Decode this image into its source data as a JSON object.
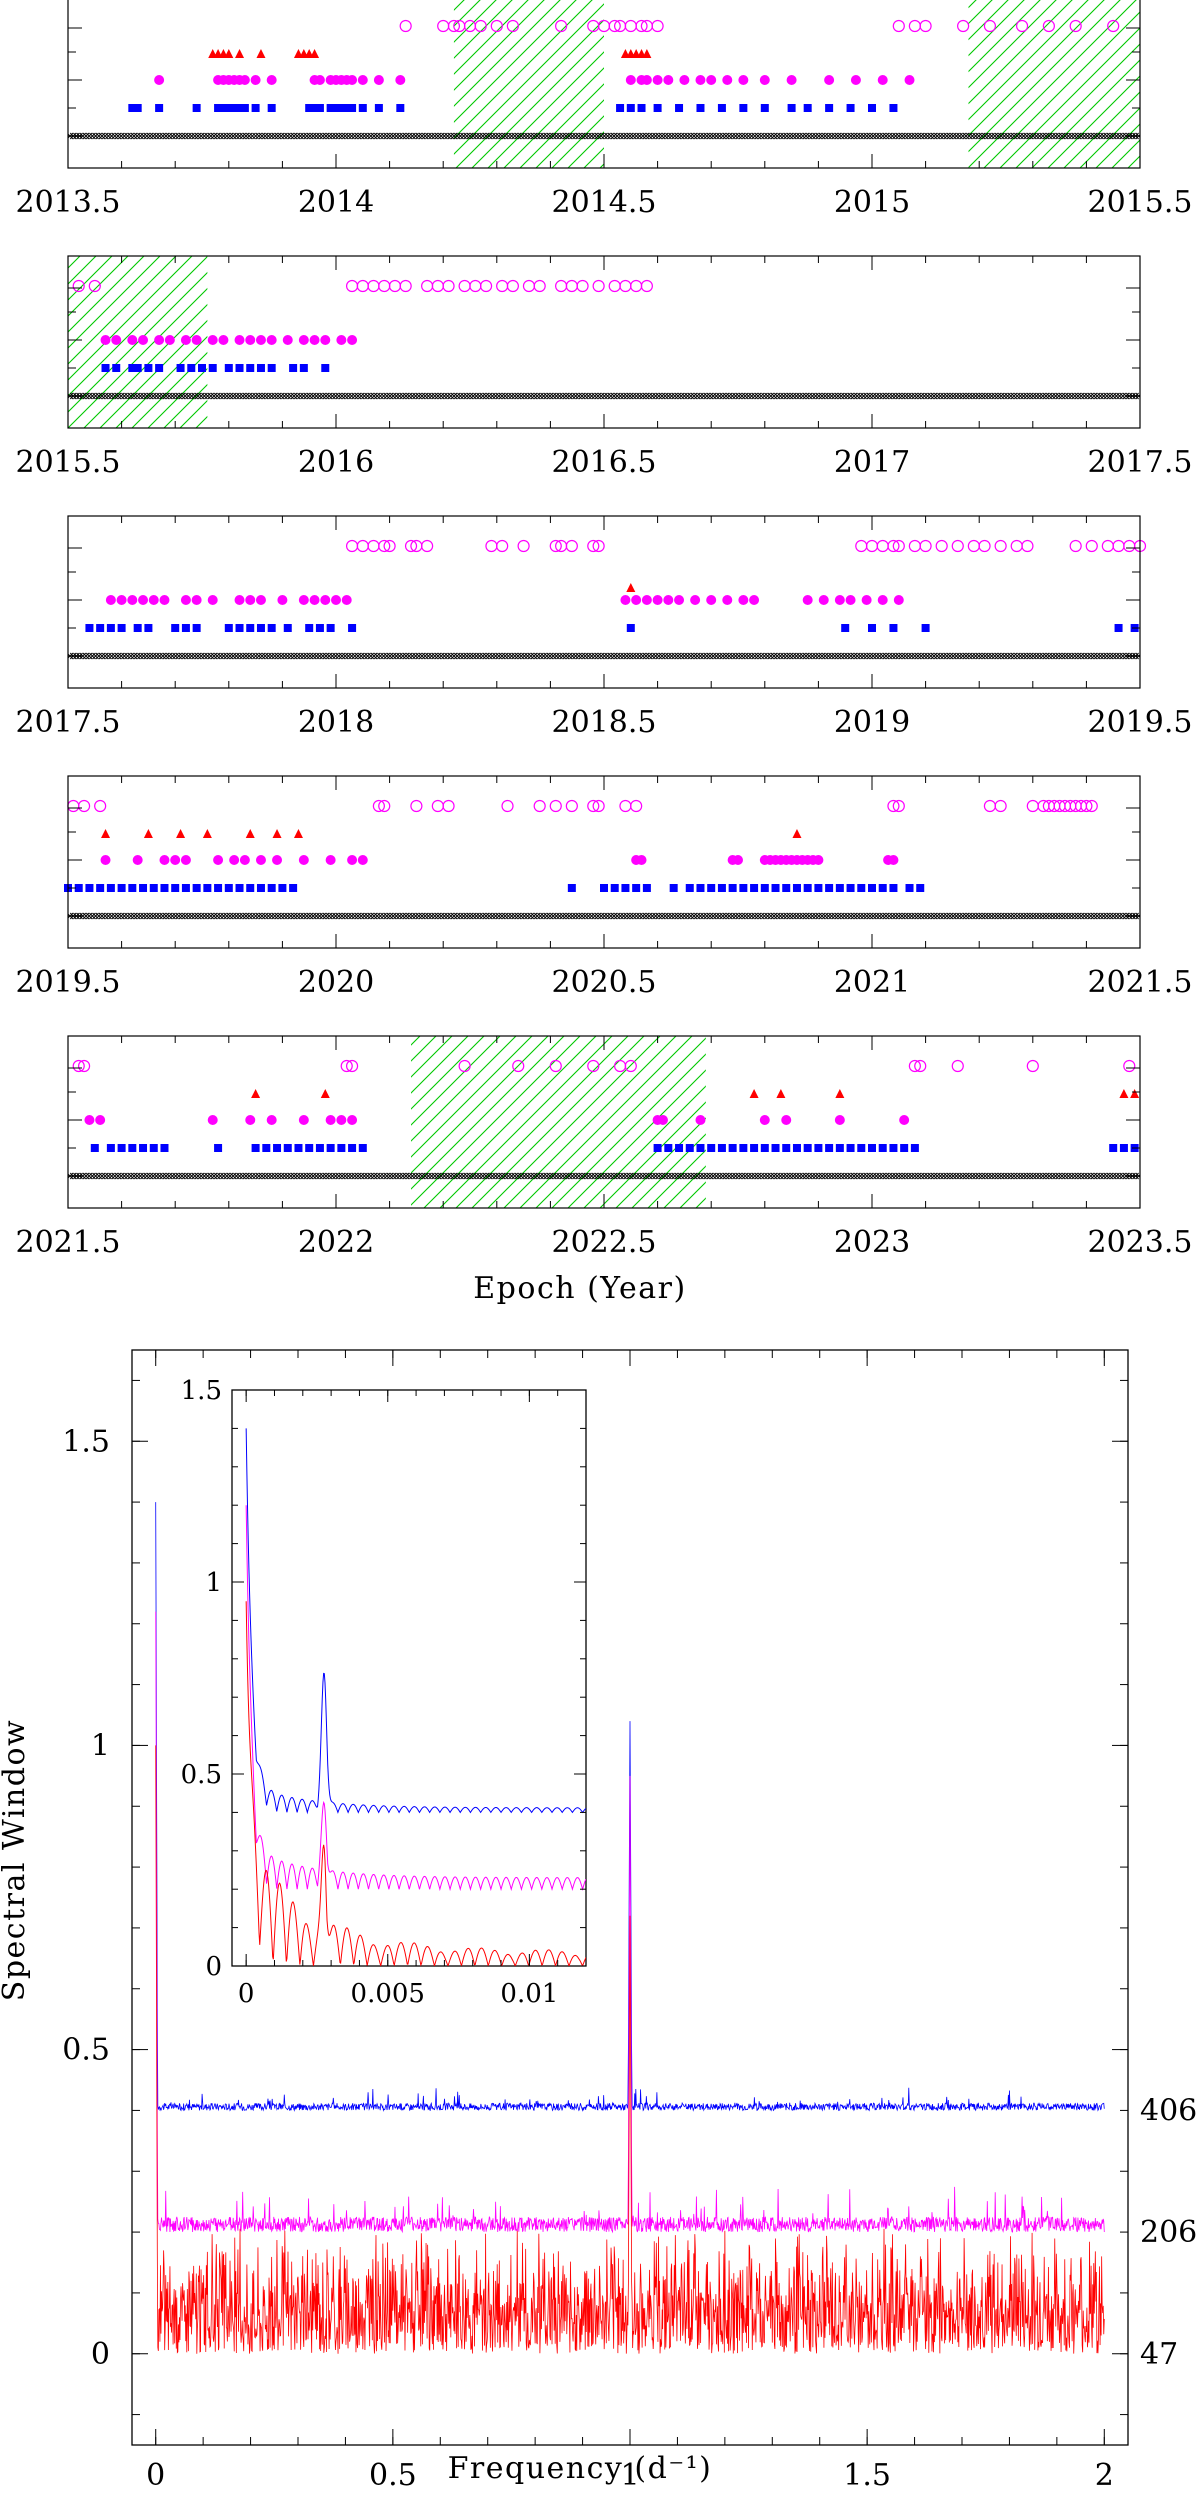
{
  "chart_data": [
    {
      "type": "scatter",
      "xlabel": "Epoch (Year)",
      "panels": [
        {
          "xlim": [
            2013.5,
            2015.5
          ],
          "tick_labels": [
            "2013.5",
            "2014",
            "2014.5",
            "2015",
            "2015.5"
          ],
          "gaps": [
            [
              2014.22,
              2014.5
            ],
            [
              2015.18,
              2015.5
            ]
          ],
          "series": {
            "open": [
              2014.13,
              2014.2,
              2014.22,
              2014.23,
              2014.25,
              2014.27,
              2014.3,
              2014.33,
              2014.42,
              2014.48,
              2014.5,
              2014.52,
              2014.53,
              2014.55,
              2014.57,
              2014.58,
              2014.6,
              2015.05,
              2015.08,
              2015.1,
              2015.17,
              2015.22,
              2015.28,
              2015.33,
              2015.38,
              2015.45
            ],
            "filled": [
              2013.67,
              2013.78,
              2013.79,
              2013.8,
              2013.81,
              2013.82,
              2013.83,
              2013.85,
              2013.88,
              2013.96,
              2013.97,
              2013.99,
              2014.0,
              2014.01,
              2014.02,
              2014.03,
              2014.05,
              2014.08,
              2014.12,
              2014.55,
              2014.57,
              2014.58,
              2014.6,
              2014.62,
              2014.65,
              2014.68,
              2014.7,
              2014.73,
              2014.76,
              2014.8,
              2014.85,
              2014.92,
              2014.97,
              2015.02,
              2015.07
            ],
            "square": [
              2013.62,
              2013.63,
              2013.67,
              2013.74,
              2013.78,
              2013.79,
              2013.8,
              2013.81,
              2013.82,
              2013.83,
              2013.85,
              2013.88,
              2013.95,
              2013.96,
              2013.97,
              2013.99,
              2014.0,
              2014.01,
              2014.02,
              2014.03,
              2014.05,
              2014.08,
              2014.12,
              2014.53,
              2014.55,
              2014.57,
              2014.6,
              2014.64,
              2014.68,
              2014.72,
              2014.76,
              2014.8,
              2014.85,
              2014.88,
              2014.92,
              2014.96,
              2015.0,
              2015.04
            ],
            "triangle": [
              2013.77,
              2013.78,
              2013.79,
              2013.8,
              2013.82,
              2013.86,
              2013.93,
              2013.94,
              2013.95,
              2013.96,
              2014.54,
              2014.55,
              2014.56,
              2014.57,
              2014.58
            ]
          }
        },
        {
          "xlim": [
            2015.5,
            2017.5
          ],
          "tick_labels": [
            "2015.5",
            "2016",
            "2016.5",
            "2017",
            "2017.5"
          ],
          "gaps": [
            [
              2015.5,
              2015.76
            ]
          ],
          "series": {
            "open": [
              2015.52,
              2015.55,
              2016.03,
              2016.05,
              2016.07,
              2016.09,
              2016.11,
              2016.13,
              2016.17,
              2016.19,
              2016.21,
              2016.24,
              2016.26,
              2016.28,
              2016.31,
              2016.33,
              2016.36,
              2016.38,
              2016.42,
              2016.44,
              2016.46,
              2016.49,
              2016.52,
              2016.54,
              2016.56,
              2016.58
            ],
            "filled": [
              2015.57,
              2015.59,
              2015.62,
              2015.64,
              2015.67,
              2015.69,
              2015.72,
              2015.74,
              2015.77,
              2015.79,
              2015.82,
              2015.84,
              2015.86,
              2015.88,
              2015.91,
              2015.94,
              2015.96,
              2015.98,
              2016.01,
              2016.03
            ],
            "square": [
              2015.57,
              2015.59,
              2015.62,
              2015.63,
              2015.65,
              2015.67,
              2015.71,
              2015.73,
              2015.75,
              2015.77,
              2015.8,
              2015.82,
              2015.84,
              2015.86,
              2015.88,
              2015.92,
              2015.94,
              2015.98
            ],
            "triangle": []
          }
        },
        {
          "xlim": [
            2017.5,
            2019.5
          ],
          "tick_labels": [
            "2017.5",
            "2018",
            "2018.5",
            "2019",
            "2019.5"
          ],
          "gaps": [],
          "series": {
            "open": [
              2018.03,
              2018.05,
              2018.07,
              2018.09,
              2018.1,
              2018.14,
              2018.15,
              2018.17,
              2018.29,
              2018.31,
              2018.35,
              2018.41,
              2018.42,
              2018.44,
              2018.48,
              2018.49,
              2018.98,
              2019.0,
              2019.02,
              2019.04,
              2019.05,
              2019.08,
              2019.1,
              2019.13,
              2019.16,
              2019.19,
              2019.21,
              2019.24,
              2019.27,
              2019.29,
              2019.38,
              2019.41,
              2019.44,
              2019.46,
              2019.48,
              2019.5
            ],
            "filled": [
              2017.58,
              2017.6,
              2017.62,
              2017.64,
              2017.66,
              2017.68,
              2017.72,
              2017.74,
              2017.77,
              2017.82,
              2017.84,
              2017.86,
              2017.9,
              2017.94,
              2017.96,
              2017.98,
              2018.0,
              2018.02,
              2018.54,
              2018.56,
              2018.58,
              2018.6,
              2018.62,
              2018.64,
              2018.67,
              2018.7,
              2018.73,
              2018.76,
              2018.78,
              2018.88,
              2018.91,
              2018.94,
              2018.96,
              2018.99,
              2019.02,
              2019.05
            ],
            "square": [
              2017.54,
              2017.56,
              2017.58,
              2017.6,
              2017.63,
              2017.65,
              2017.7,
              2017.72,
              2017.74,
              2017.8,
              2017.82,
              2017.84,
              2017.86,
              2017.88,
              2017.91,
              2017.95,
              2017.97,
              2017.99,
              2018.03,
              2018.55,
              2018.95,
              2019.0,
              2019.04,
              2019.1,
              2019.46,
              2019.49
            ],
            "triangle": [
              2018.55
            ]
          }
        },
        {
          "xlim": [
            2019.5,
            2021.5
          ],
          "tick_labels": [
            "2019.5",
            "2020",
            "2020.5",
            "2021",
            "2021.5"
          ],
          "gaps": [],
          "series": {
            "open": [
              2019.51,
              2019.53,
              2019.56,
              2020.08,
              2020.09,
              2020.15,
              2020.19,
              2020.21,
              2020.32,
              2020.38,
              2020.41,
              2020.44,
              2020.48,
              2020.49,
              2020.54,
              2020.56,
              2021.04,
              2021.05,
              2021.22,
              2021.24,
              2021.3,
              2021.32,
              2021.33,
              2021.34,
              2021.35,
              2021.36,
              2021.37,
              2021.38,
              2021.39,
              2021.4,
              2021.41
            ],
            "filled": [
              2019.57,
              2019.63,
              2019.68,
              2019.7,
              2019.72,
              2019.78,
              2019.81,
              2019.83,
              2019.86,
              2019.89,
              2019.94,
              2019.99,
              2020.03,
              2020.05,
              2020.56,
              2020.57,
              2020.74,
              2020.75,
              2020.8,
              2020.81,
              2020.82,
              2020.83,
              2020.84,
              2020.85,
              2020.86,
              2020.87,
              2020.88,
              2020.89,
              2020.9,
              2021.03,
              2021.04
            ],
            "square": [
              2019.5,
              2019.52,
              2019.54,
              2019.56,
              2019.58,
              2019.6,
              2019.62,
              2019.64,
              2019.66,
              2019.68,
              2019.7,
              2019.72,
              2019.74,
              2019.76,
              2019.78,
              2019.8,
              2019.82,
              2019.84,
              2019.86,
              2019.88,
              2019.9,
              2019.92,
              2020.44,
              2020.5,
              2020.52,
              2020.54,
              2020.56,
              2020.58,
              2020.63,
              2020.66,
              2020.68,
              2020.7,
              2020.72,
              2020.74,
              2020.76,
              2020.78,
              2020.8,
              2020.82,
              2020.84,
              2020.86,
              2020.88,
              2020.9,
              2020.92,
              2020.94,
              2020.96,
              2020.98,
              2021.0,
              2021.02,
              2021.04,
              2021.07,
              2021.09
            ],
            "triangle": [
              2019.57,
              2019.65,
              2019.71,
              2019.76,
              2019.84,
              2019.89,
              2019.93,
              2020.86
            ]
          }
        },
        {
          "xlim": [
            2021.5,
            2023.5
          ],
          "tick_labels": [
            "2021.5",
            "2022",
            "2022.5",
            "2023",
            "2023.5"
          ],
          "gaps": [
            [
              2022.14,
              2022.69
            ]
          ],
          "series": {
            "open": [
              2021.52,
              2021.53,
              2022.02,
              2022.03,
              2022.24,
              2022.34,
              2022.41,
              2022.48,
              2022.53,
              2022.55,
              2023.08,
              2023.09,
              2023.16,
              2023.3,
              2023.48
            ],
            "filled": [
              2021.54,
              2021.56,
              2021.77,
              2021.84,
              2021.88,
              2021.94,
              2021.99,
              2022.01,
              2022.03,
              2022.6,
              2022.61,
              2022.68,
              2022.8,
              2022.84,
              2022.94,
              2023.06
            ],
            "square": [
              2021.55,
              2021.58,
              2021.6,
              2021.62,
              2021.64,
              2021.66,
              2021.68,
              2021.78,
              2021.85,
              2021.87,
              2021.89,
              2021.91,
              2021.93,
              2021.95,
              2021.97,
              2021.99,
              2022.01,
              2022.03,
              2022.05,
              2022.6,
              2022.62,
              2022.64,
              2022.66,
              2022.68,
              2022.7,
              2022.72,
              2022.74,
              2022.76,
              2022.78,
              2022.8,
              2022.82,
              2022.84,
              2022.86,
              2022.88,
              2022.9,
              2022.92,
              2022.94,
              2022.96,
              2022.98,
              2023.0,
              2023.02,
              2023.04,
              2023.06,
              2023.08,
              2023.45,
              2023.47,
              2023.49
            ],
            "triangle": [
              2021.85,
              2021.98,
              2022.78,
              2022.83,
              2022.94,
              2023.47,
              2023.49
            ]
          }
        }
      ]
    },
    {
      "type": "line",
      "xlabel": "Frequency (d⁻¹)",
      "ylabel": "Spectral Window",
      "xlim": [
        -0.05,
        2.05
      ],
      "ylim": [
        -0.15,
        1.65
      ],
      "x_ticks": [
        "0",
        "0.5",
        "1",
        "1.5",
        "2"
      ],
      "y_ticks": [
        "0",
        "0.5",
        "1",
        "1.5"
      ],
      "series": [
        {
          "name": "406",
          "offset": 0.4,
          "color": "#0000ff",
          "peak_at_0": 1.4,
          "peak_at_1": 1.04
        },
        {
          "name": "206",
          "offset": 0.2,
          "color": "#ff00ff",
          "peak_at_0": 1.22,
          "peak_at_1": 0.95
        },
        {
          "name": "47",
          "offset": 0.0,
          "color": "#ff0000",
          "peak_at_0": 1.0,
          "peak_at_1": 0.72
        }
      ],
      "inset": {
        "xlim": [
          -0.0005,
          0.012
        ],
        "ylim": [
          0,
          1.5
        ],
        "x_ticks": [
          "0",
          "0.005",
          "0.01"
        ],
        "y_ticks": [
          "0",
          "0.5",
          "1",
          "1.5"
        ]
      }
    }
  ]
}
